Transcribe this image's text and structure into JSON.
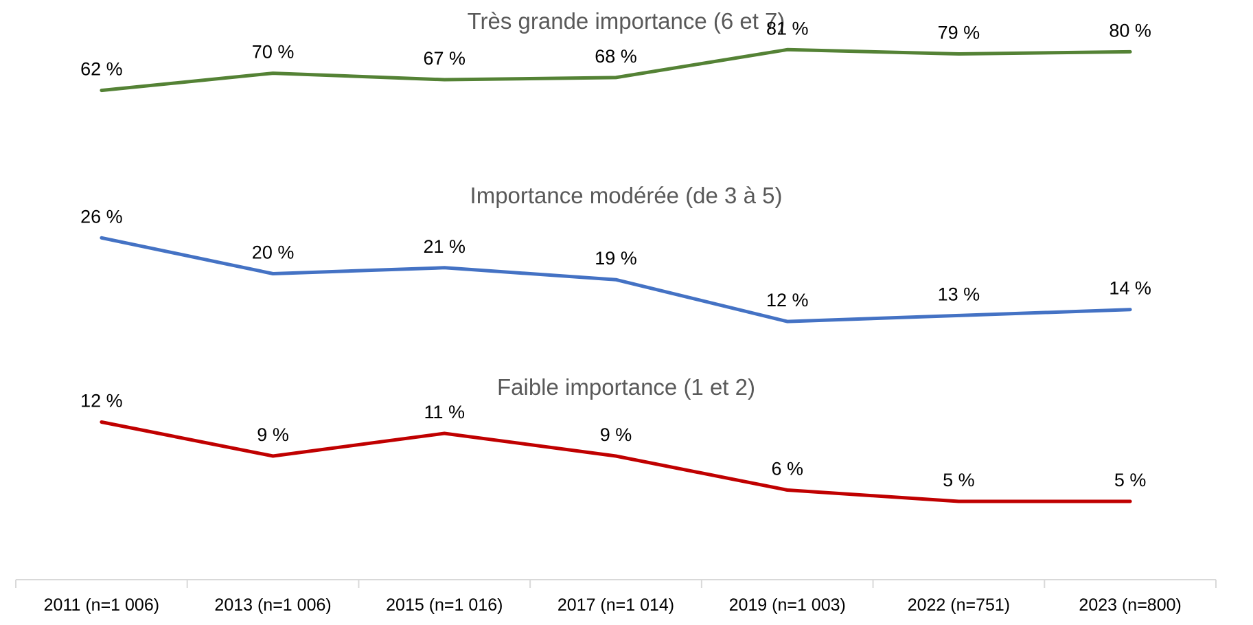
{
  "chart_data": {
    "type": "line",
    "title": "",
    "xlabel": "",
    "ylabel": "",
    "categories": [
      "2011 (n=1 006)",
      "2013 (n=1 006)",
      "2015 (n=1 016)",
      "2017 (n=1 014)",
      "2019 (n=1 003)",
      "2022 (n=751)",
      "2023 (n=800)"
    ],
    "grid": false,
    "legend": "none",
    "series": [
      {
        "name": "Très grande importance (6 et 7)",
        "color": "#548235",
        "values": [
          62,
          70,
          67,
          68,
          81,
          79,
          80
        ],
        "labels": [
          "62 %",
          "70 %",
          "67 %",
          "68 %",
          "81 %",
          "79 %",
          "80 %"
        ]
      },
      {
        "name": "Importance modérée (de 3 à 5)",
        "color": "#4472C4",
        "values": [
          26,
          20,
          21,
          19,
          12,
          13,
          14
        ],
        "labels": [
          "26 %",
          "20 %",
          "21 %",
          "19 %",
          "12 %",
          "13 %",
          "14 %"
        ]
      },
      {
        "name": "Faible importance (1 et 2)",
        "color": "#C00000",
        "values": [
          12,
          9,
          11,
          9,
          6,
          5,
          5
        ],
        "labels": [
          "12 %",
          "9 %",
          "11 %",
          "9 %",
          "6 %",
          "5 %",
          "5 %"
        ]
      }
    ],
    "axis_color": "#D9D9D9"
  }
}
